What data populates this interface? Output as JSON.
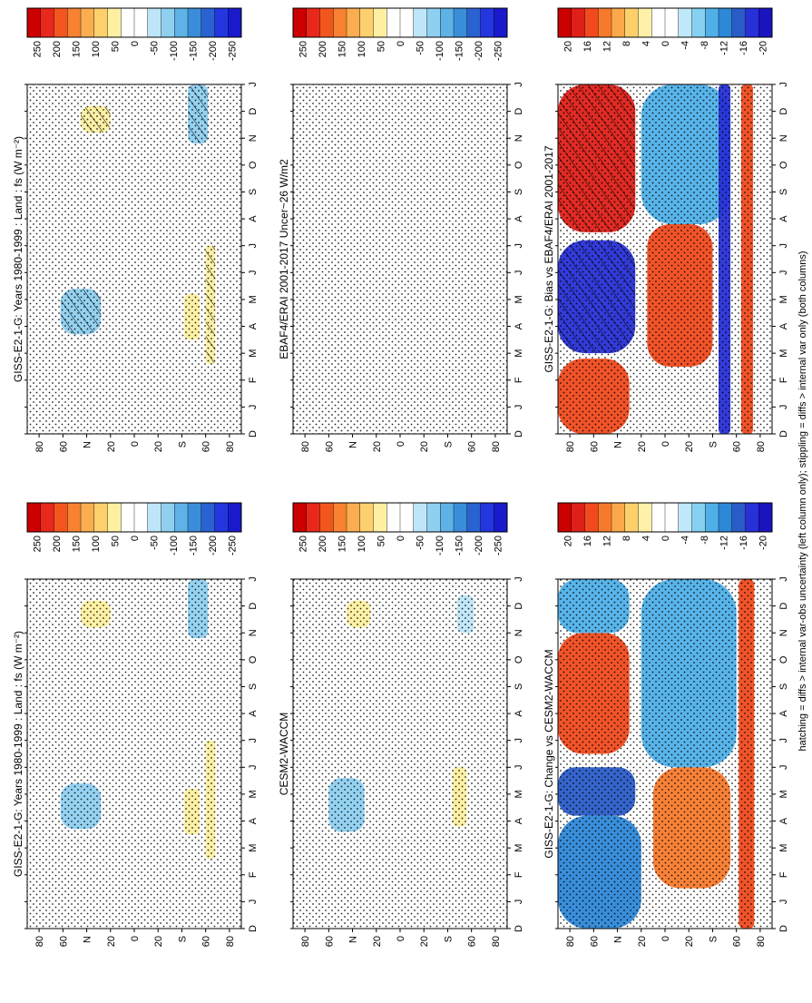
{
  "figure": {
    "footnote": "hatching = diffs > internal var-obs uncertainty (left column only); stippling = diffs > internal var only (both columns)"
  },
  "colors": {
    "abs_scale": [
      "#cc0000",
      "#e8281a",
      "#f2561e",
      "#f88232",
      "#fbae50",
      "#fdd06e",
      "#fef0a0",
      "#ffffff",
      "#ffffff",
      "#bfe6f8",
      "#8fd0f0",
      "#5fb2e6",
      "#3a8ed9",
      "#2a62d2",
      "#2336e0",
      "#1a1acc"
    ],
    "diff_scale": [
      "#cc0000",
      "#e02018",
      "#f04a1e",
      "#f77a2c",
      "#fba84a",
      "#fdd06c",
      "#fff2a8",
      "#ffffff",
      "#ffffff",
      "#bfe8fa",
      "#86d0f2",
      "#4fb0e8",
      "#2e88d8",
      "#2a5cc8",
      "#2830d8",
      "#1a14c0"
    ]
  },
  "chart_data": [
    {
      "type": "heatmap",
      "panel": "top-left",
      "title": "GISS-E2-1-G: Years 1980-1999 : Land : fs (W m⁻²)",
      "x": [
        "D",
        "J",
        "F",
        "M",
        "A",
        "M",
        "J",
        "J",
        "A",
        "S",
        "O",
        "N",
        "D",
        "J"
      ],
      "y_ticks": [
        "80",
        "60",
        "N",
        "20",
        "0",
        "20",
        "S",
        "60",
        "80"
      ],
      "colorbar": {
        "ticks": [
          "250",
          "200",
          "150",
          "100",
          "50",
          "0",
          "-50",
          "-100",
          "-150",
          "-200",
          "-250"
        ]
      },
      "scale": "abs",
      "features": [
        {
          "x0": 3.7,
          "x1": 5.4,
          "y0": 62,
          "y1": 28,
          "bin": 10,
          "hatch": true
        },
        {
          "x0": 11.2,
          "x1": 12.2,
          "y0": 45,
          "y1": 20,
          "bin": 6,
          "hatch": true
        },
        {
          "x0": 10.8,
          "x1": 13.0,
          "y0": -45,
          "y1": -62,
          "bin": 10,
          "hatch": true
        },
        {
          "x0": 3.5,
          "x1": 5.2,
          "y0": -42,
          "y1": -55,
          "bin": 6,
          "hatch": false
        },
        {
          "x0": 2.6,
          "x1": 7.0,
          "y0": -60,
          "y1": -68,
          "bin": 6,
          "hatch": true
        }
      ]
    },
    {
      "type": "heatmap",
      "panel": "middle-left",
      "title": "EBAF4/ERAI 2001-2017 Uncer~26 W/m2",
      "x": [
        "D",
        "J",
        "F",
        "M",
        "A",
        "M",
        "J",
        "J",
        "A",
        "S",
        "O",
        "N",
        "D",
        "J"
      ],
      "y_ticks": [
        "80",
        "60",
        "N",
        "20",
        "0",
        "20",
        "S",
        "60",
        "80"
      ],
      "colorbar": {
        "ticks": [
          "250",
          "200",
          "150",
          "100",
          "50",
          "0",
          "-50",
          "-100",
          "-150",
          "-200",
          "-250"
        ]
      },
      "scale": "abs",
      "features": []
    },
    {
      "type": "heatmap",
      "panel": "bottom-left",
      "title": "GISS-E2-1-G: Bias vs EBAF4/ERAI 2001-2017",
      "x": [
        "D",
        "J",
        "F",
        "M",
        "A",
        "M",
        "J",
        "J",
        "A",
        "S",
        "O",
        "N",
        "D",
        "J"
      ],
      "y_ticks": [
        "80",
        "60",
        "N",
        "20",
        "0",
        "20",
        "S",
        "60",
        "80"
      ],
      "colorbar": {
        "ticks": [
          "20",
          "16",
          "12",
          "8",
          "4",
          "0",
          "-4",
          "-8",
          "-12",
          "-16",
          "-20"
        ]
      },
      "scale": "diff",
      "features": [
        {
          "x0": 0.0,
          "x1": 2.8,
          "y0": 90,
          "y1": 30,
          "bin": 2,
          "hatch": false
        },
        {
          "x0": 3.0,
          "x1": 7.2,
          "y0": 90,
          "y1": 25,
          "bin": 14,
          "hatch": true
        },
        {
          "x0": 7.5,
          "x1": 13.0,
          "y0": 90,
          "y1": 25,
          "bin": 1,
          "hatch": true
        },
        {
          "x0": 2.5,
          "x1": 7.8,
          "y0": 15,
          "y1": -40,
          "bin": 2,
          "hatch": false
        },
        {
          "x0": 7.8,
          "x1": 13.0,
          "y0": 20,
          "y1": -55,
          "bin": 11,
          "hatch": false
        },
        {
          "x0": 0.0,
          "x1": 13.0,
          "y0": -45,
          "y1": -55,
          "bin": 14,
          "hatch": false
        },
        {
          "x0": 0.0,
          "x1": 13.0,
          "y0": -64,
          "y1": -74,
          "bin": 2,
          "hatch": false
        }
      ]
    },
    {
      "type": "heatmap",
      "panel": "top-right",
      "title": "GISS-E2-1-G: Years 1980-1999 : Land : fs (W m⁻²)",
      "x": [
        "D",
        "J",
        "F",
        "M",
        "A",
        "M",
        "J",
        "J",
        "A",
        "S",
        "O",
        "N",
        "D",
        "J"
      ],
      "y_ticks": [
        "80",
        "60",
        "N",
        "20",
        "0",
        "20",
        "S",
        "60",
        "80"
      ],
      "colorbar": {
        "ticks": [
          "250",
          "200",
          "150",
          "100",
          "50",
          "0",
          "-50",
          "-100",
          "-150",
          "-200",
          "-250"
        ]
      },
      "scale": "abs",
      "features": [
        {
          "x0": 3.7,
          "x1": 5.4,
          "y0": 62,
          "y1": 28,
          "bin": 10,
          "hatch": false
        },
        {
          "x0": 11.2,
          "x1": 12.2,
          "y0": 45,
          "y1": 20,
          "bin": 6,
          "hatch": false
        },
        {
          "x0": 10.8,
          "x1": 13.0,
          "y0": -45,
          "y1": -62,
          "bin": 10,
          "hatch": false
        },
        {
          "x0": 3.5,
          "x1": 5.2,
          "y0": -42,
          "y1": -55,
          "bin": 6,
          "hatch": false
        },
        {
          "x0": 2.6,
          "x1": 7.0,
          "y0": -60,
          "y1": -68,
          "bin": 6,
          "hatch": false
        }
      ]
    },
    {
      "type": "heatmap",
      "panel": "middle-right",
      "title": "CESM2-WACCM",
      "x": [
        "D",
        "J",
        "F",
        "M",
        "A",
        "M",
        "J",
        "J",
        "A",
        "S",
        "O",
        "N",
        "D",
        "J"
      ],
      "y_ticks": [
        "80",
        "60",
        "N",
        "20",
        "0",
        "20",
        "S",
        "60",
        "80"
      ],
      "colorbar": {
        "ticks": [
          "250",
          "200",
          "150",
          "100",
          "50",
          "0",
          "-50",
          "-100",
          "-150",
          "-200",
          "-250"
        ]
      },
      "scale": "abs",
      "features": [
        {
          "x0": 3.6,
          "x1": 5.6,
          "y0": 60,
          "y1": 30,
          "bin": 10,
          "hatch": false
        },
        {
          "x0": 11.2,
          "x1": 12.2,
          "y0": 45,
          "y1": 25,
          "bin": 6,
          "hatch": false
        },
        {
          "x0": 11.0,
          "x1": 12.4,
          "y0": -48,
          "y1": -62,
          "bin": 9,
          "hatch": false
        },
        {
          "x0": 3.8,
          "x1": 6.0,
          "y0": -44,
          "y1": -56,
          "bin": 6,
          "hatch": false
        }
      ]
    },
    {
      "type": "heatmap",
      "panel": "bottom-right",
      "title": "GISS-E2-1-G: Change vs CESM2-WACCM",
      "x": [
        "D",
        "J",
        "F",
        "M",
        "A",
        "M",
        "J",
        "J",
        "A",
        "S",
        "O",
        "N",
        "D",
        "J"
      ],
      "y_ticks": [
        "80",
        "60",
        "N",
        "20",
        "0",
        "20",
        "S",
        "60",
        "80"
      ],
      "colorbar": {
        "ticks": [
          "20",
          "16",
          "12",
          "8",
          "4",
          "0",
          "-4",
          "-8",
          "-12",
          "-16",
          "-20"
        ]
      },
      "scale": "diff",
      "features": [
        {
          "x0": 0.0,
          "x1": 4.2,
          "y0": 90,
          "y1": 20,
          "bin": 12,
          "hatch": false
        },
        {
          "x0": 4.2,
          "x1": 6.0,
          "y0": 90,
          "y1": 25,
          "bin": 13,
          "hatch": false
        },
        {
          "x0": 6.5,
          "x1": 11.0,
          "y0": 90,
          "y1": 30,
          "bin": 2,
          "hatch": false
        },
        {
          "x0": 11.0,
          "x1": 13.0,
          "y0": 90,
          "y1": 30,
          "bin": 11,
          "hatch": false
        },
        {
          "x0": 1.5,
          "x1": 6.0,
          "y0": 10,
          "y1": -55,
          "bin": 3,
          "hatch": false
        },
        {
          "x0": 6.0,
          "x1": 13.0,
          "y0": 20,
          "y1": -60,
          "bin": 11,
          "hatch": false
        },
        {
          "x0": 0.0,
          "x1": 13.0,
          "y0": -62,
          "y1": -75,
          "bin": 2,
          "hatch": false
        }
      ]
    }
  ]
}
